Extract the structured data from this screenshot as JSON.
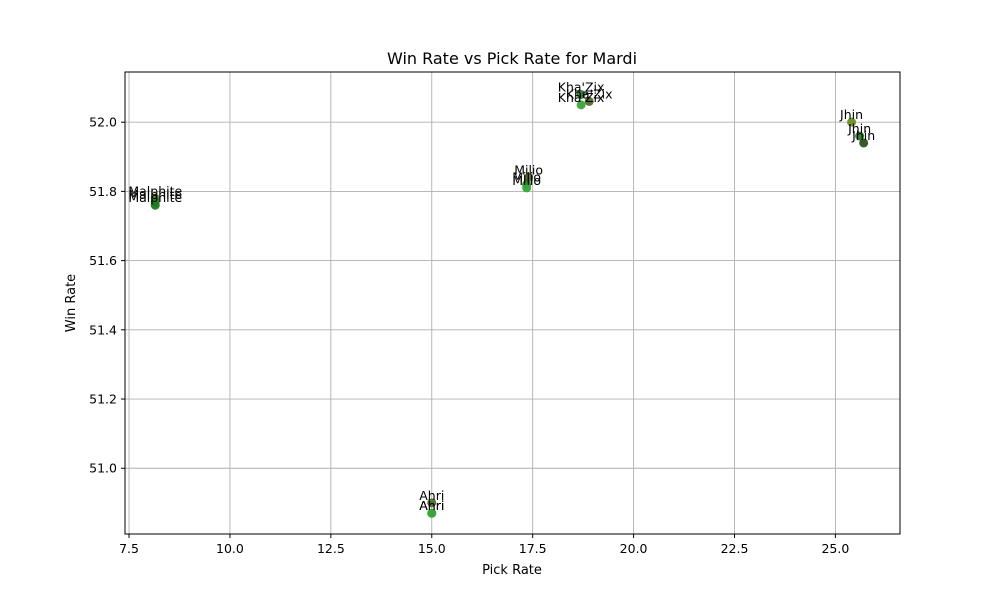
{
  "chart_data": {
    "type": "scatter",
    "title": "Win Rate vs Pick Rate for Mardi",
    "xlabel": "Pick Rate",
    "ylabel": "Win Rate",
    "xlim": [
      7.4,
      26.6
    ],
    "ylim": [
      50.81,
      52.145
    ],
    "xticks": [
      "7.5",
      "10.0",
      "12.5",
      "15.0",
      "17.5",
      "20.0",
      "22.5",
      "25.0"
    ],
    "yticks": [
      "51.0",
      "51.2",
      "51.4",
      "51.6",
      "51.8",
      "52.0"
    ],
    "grid": true,
    "points": [
      {
        "label": "Kha'Zix",
        "x": 18.7,
        "y": 52.08,
        "color": "#2e7d32"
      },
      {
        "label": "Kha'Zix",
        "x": 18.9,
        "y": 52.06,
        "color": "#556b2f"
      },
      {
        "label": "Kha'Zix",
        "x": 18.7,
        "y": 52.05,
        "color": "#3aa63a"
      },
      {
        "label": "Jhin",
        "x": 25.4,
        "y": 52.0,
        "color": "#6b8e23"
      },
      {
        "label": "Jhin",
        "x": 25.6,
        "y": 51.96,
        "color": "#2e7d32"
      },
      {
        "label": "Jhin",
        "x": 25.7,
        "y": 51.94,
        "color": "#2f4f1f"
      },
      {
        "label": "Milio",
        "x": 17.4,
        "y": 51.84,
        "color": "#556b2f"
      },
      {
        "label": "Milio",
        "x": 17.35,
        "y": 51.82,
        "color": "#2e7d32"
      },
      {
        "label": "Milio",
        "x": 17.35,
        "y": 51.81,
        "color": "#3aa63a"
      },
      {
        "label": "Malphite",
        "x": 8.15,
        "y": 51.78,
        "color": "#6b8e23"
      },
      {
        "label": "Malphite",
        "x": 8.15,
        "y": 51.77,
        "color": "#2e7d32"
      },
      {
        "label": "Malphite",
        "x": 8.15,
        "y": 51.76,
        "color": "#1b7a1b"
      },
      {
        "label": "Ahri",
        "x": 15.0,
        "y": 50.9,
        "color": "#556b2f"
      },
      {
        "label": "Ahri",
        "x": 15.0,
        "y": 50.87,
        "color": "#2e7d32"
      },
      {
        "label": "Ahri",
        "x": 15.0,
        "y": 50.87,
        "color": "#3aa63a"
      }
    ]
  }
}
